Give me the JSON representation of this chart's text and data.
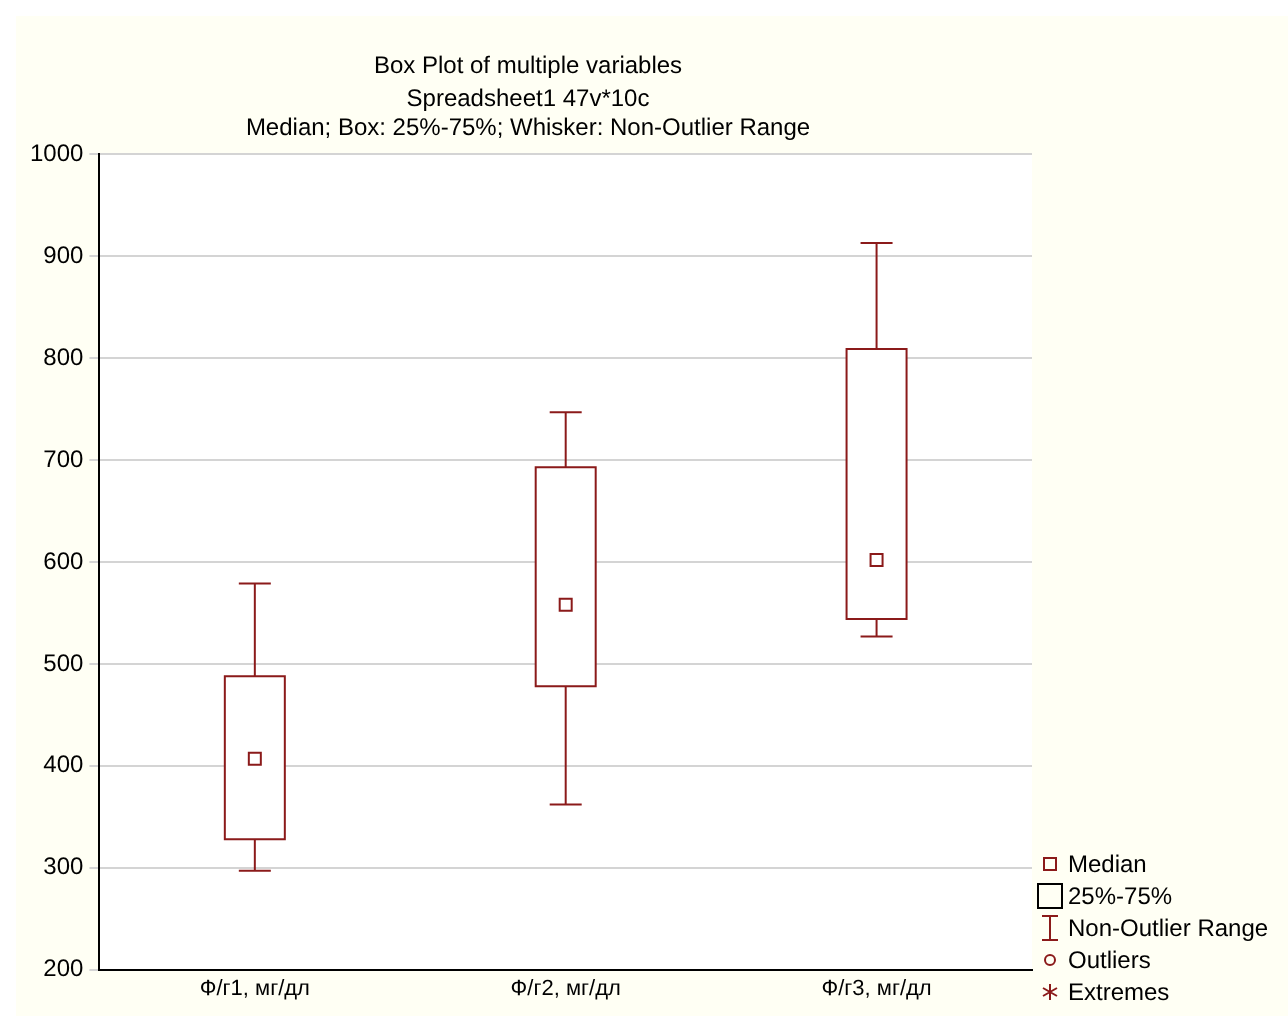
{
  "chart_data": {
    "type": "box",
    "title": "Box Plot of multiple variables",
    "subtitle": "Spreadsheet1 47v*10c\nMedian; Box: 25%-75%; Whisker: Non-Outlier Range",
    "categories": [
      "Ф/г1, мг/дл",
      "Ф/г2, мг/дл",
      "Ф/г3, мг/дл"
    ],
    "color": "#8b1a1a",
    "boxes": [
      {
        "low": 297,
        "q1": 328,
        "median": 407,
        "q3": 488,
        "high": 579
      },
      {
        "low": 362,
        "q1": 478,
        "median": 558,
        "q3": 693,
        "high": 747
      },
      {
        "low": 527,
        "q1": 544,
        "median": 602,
        "q3": 809,
        "high": 913
      }
    ],
    "ylim": [
      200,
      1000
    ],
    "yticks": [
      200,
      300,
      400,
      500,
      600,
      700,
      800,
      900,
      1000
    ],
    "grid": "y",
    "annotations": [
      "Median",
      "25%-75%",
      "Non-Outlier Range",
      "Outliers",
      "Extremes"
    ]
  }
}
